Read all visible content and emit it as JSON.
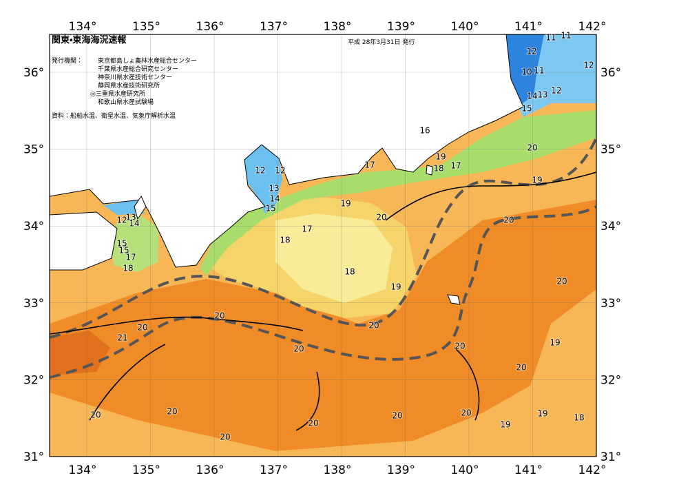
{
  "header": {
    "title": "関東・東海海況速報",
    "date": "平成 28年3月31日 発行"
  },
  "publisher": {
    "heading": "発行機関：",
    "agencies": [
      "東京都島しょ農林水産総合センター",
      "千葉県水産総合研究センター",
      "神奈川県水産技術センター",
      "静岡県水産技術研究所",
      "◎三重県水産研究所",
      "和歌山県水産試験場"
    ]
  },
  "source": "資料：船舶水温、衛星水温、気象庁解析水温",
  "lon_labels": [
    "134°",
    "135°",
    "136°",
    "137°",
    "138°",
    "139°",
    "140°",
    "141°",
    "142°"
  ],
  "lat_labels": [
    "36°",
    "35°",
    "34°",
    "33°",
    "32°",
    "31°"
  ],
  "contour_labels": [
    "11",
    "11",
    "12",
    "12",
    "10",
    "11",
    "14",
    "13",
    "12",
    "15",
    "16",
    "20",
    "17",
    "12",
    "12",
    "19",
    "18",
    "17",
    "13",
    "14",
    "15",
    "19",
    "19",
    "20",
    "20",
    "12",
    "13",
    "14",
    "17",
    "18",
    "15",
    "15",
    "17",
    "18",
    "18",
    "20",
    "19",
    "20",
    "20",
    "20",
    "21",
    "20",
    "20",
    "19",
    "20",
    "20",
    "20",
    "20",
    "20",
    "19",
    "18",
    "20",
    "19",
    "20"
  ]
}
